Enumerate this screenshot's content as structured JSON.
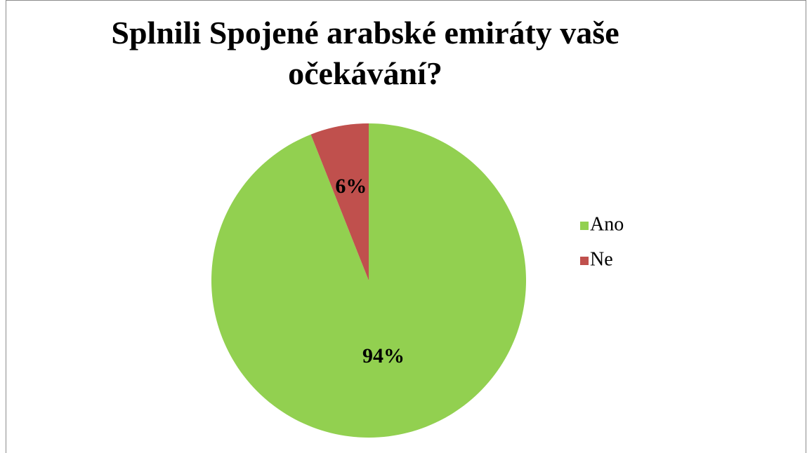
{
  "chart_data": {
    "type": "pie",
    "title": "Splnili Spojené arabské emiráty vaše očekávání?",
    "categories": [
      "Ano",
      "Ne"
    ],
    "values": [
      94,
      6
    ],
    "value_labels": [
      "94%",
      "6%"
    ],
    "colors": [
      "#92d050",
      "#c0504d"
    ],
    "legend": "right"
  }
}
